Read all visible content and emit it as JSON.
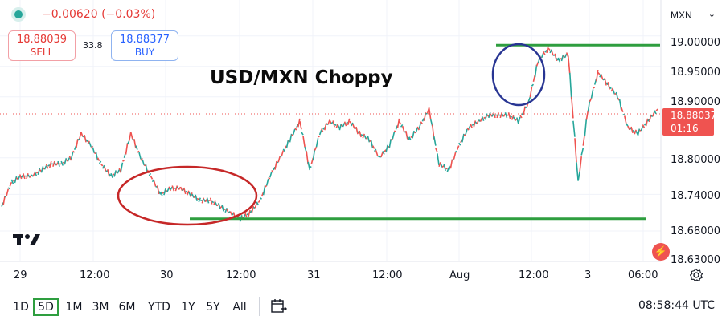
{
  "header": {
    "change": "−0.00620 (−0.03%)",
    "sell_price": "18.88039",
    "sell_label": "SELL",
    "spread": "33.8",
    "buy_price": "18.88377",
    "buy_label": "BUY",
    "currency": "MXN"
  },
  "annotation": {
    "headline": "USD/MXN Choppy",
    "support_level": 18.7,
    "resistance_level": 18.985
  },
  "price_axis": {
    "labels": [
      "19.00000",
      "18.95000",
      "18.90000",
      "18.80000",
      "18.74000",
      "18.68000",
      "18.63000"
    ],
    "last_price": "18.88037",
    "countdown": "01:16"
  },
  "time_axis": {
    "labels": [
      "29",
      "12:00",
      "30",
      "12:00",
      "31",
      "12:00",
      "Aug",
      "12:00",
      "3",
      "06:00"
    ]
  },
  "toolbar": {
    "periods": [
      "1D",
      "5D",
      "1M",
      "3M",
      "6M",
      "YTD",
      "1Y",
      "5Y",
      "All"
    ],
    "active_period": "5D",
    "clock": "08:58:44 UTC"
  },
  "colors": {
    "up": "#26a69a",
    "down": "#ef5350",
    "level_line": "#2e9e3f",
    "support_ellipse": "#c62828",
    "resistance_ellipse": "#283593"
  },
  "chart_data": {
    "type": "line",
    "title": "USD/MXN Choppy",
    "ylim": [
      18.63,
      19.03
    ],
    "x_ticks": [
      "29",
      "12:00",
      "30",
      "12:00",
      "31",
      "12:00",
      "Aug",
      "12:00",
      "3",
      "06:00"
    ],
    "series": [
      {
        "x": [
          0,
          2,
          4,
          6,
          8,
          10,
          12,
          14,
          16,
          18,
          20,
          22,
          24,
          26,
          28,
          30,
          32,
          34,
          36,
          38,
          40,
          42,
          44,
          46,
          48,
          50,
          52,
          54,
          56,
          58,
          60,
          62,
          64,
          66,
          68,
          70,
          72,
          74,
          76,
          78,
          80,
          82,
          84,
          86,
          88,
          90,
          92,
          94,
          96,
          98,
          100,
          102,
          104,
          106,
          108,
          110,
          112,
          114,
          116,
          118,
          120,
          122,
          124,
          126,
          128,
          130,
          132
        ],
        "values": [
          18.72,
          18.76,
          18.77,
          18.77,
          18.78,
          18.79,
          18.79,
          18.8,
          18.84,
          18.82,
          18.79,
          18.77,
          18.78,
          18.84,
          18.8,
          18.77,
          18.74,
          18.75,
          18.75,
          18.74,
          18.73,
          18.73,
          18.72,
          18.71,
          18.7,
          18.71,
          18.73,
          18.77,
          18.8,
          18.83,
          18.86,
          18.78,
          18.84,
          18.86,
          18.85,
          18.86,
          18.84,
          18.83,
          18.8,
          18.82,
          18.86,
          18.83,
          18.85,
          18.88,
          18.79,
          18.78,
          18.82,
          18.85,
          18.86,
          18.87,
          18.87,
          18.87,
          18.86,
          18.89,
          18.96,
          18.98,
          18.96,
          18.97,
          18.76,
          18.88,
          18.94,
          18.92,
          18.9,
          18.85,
          18.84,
          18.86,
          18.88
        ]
      }
    ]
  }
}
